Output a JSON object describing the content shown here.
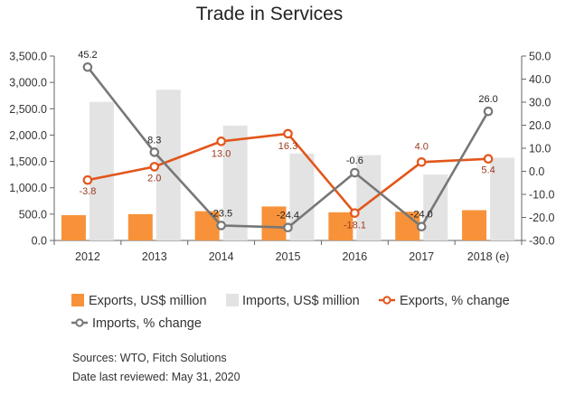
{
  "chart_data": {
    "type": "bar",
    "title": "Trade in Services",
    "categories": [
      "2012",
      "2013",
      "2014",
      "2015",
      "2016",
      "2017",
      "2018 (e)"
    ],
    "y_left": {
      "ylim": [
        0,
        3500
      ],
      "ticks": [
        "0.0",
        "500.0",
        "1,000.0",
        "1,500.0",
        "2,000.0",
        "2,500.0",
        "3,000.0",
        "3,500.0"
      ]
    },
    "y_right": {
      "ylim": [
        -30,
        50
      ],
      "ticks": [
        "-30.0",
        "-20.0",
        "-10.0",
        "0.0",
        "10.0",
        "20.0",
        "30.0",
        "40.0",
        "50.0"
      ]
    },
    "series": [
      {
        "name": "Exports, US$ million",
        "type": "bar",
        "axis": "left",
        "color": "#f7923a",
        "values": [
          480,
          500,
          555,
          645,
          535,
          545,
          575
        ]
      },
      {
        "name": "Imports, US$ million",
        "type": "bar",
        "axis": "left",
        "color": "#e3e3e3",
        "values": [
          2630,
          2860,
          2180,
          1650,
          1620,
          1250,
          1570
        ]
      },
      {
        "name": "Exports, % change",
        "type": "line",
        "axis": "right",
        "color": "#e2561b",
        "label_color": "#9b3a1e",
        "values": [
          -3.8,
          2.0,
          13.0,
          16.3,
          -18.1,
          4.0,
          5.4
        ],
        "labels": [
          "-3.8",
          "2.0",
          "13.0",
          "16.3",
          "-18.1",
          "4.0",
          "5.4"
        ]
      },
      {
        "name": "Imports, % change",
        "type": "line",
        "axis": "right",
        "color": "#777777",
        "label_color": "#222222",
        "values": [
          45.2,
          8.3,
          -23.5,
          -24.4,
          -0.6,
          -24.0,
          26.0
        ],
        "labels": [
          "45.2",
          "8.3",
          "-23.5",
          "-24.4",
          "-0.6",
          "-24.0",
          "26.0"
        ]
      }
    ],
    "legend": [
      "Exports, US$ million",
      "Imports, US$ million",
      "Exports, % change",
      "Imports, % change"
    ],
    "legend_position": "bottom",
    "grid": false
  },
  "footer": {
    "sources": "Sources: WTO, Fitch Solutions",
    "reviewed": "Date last reviewed: May 31, 2020"
  }
}
